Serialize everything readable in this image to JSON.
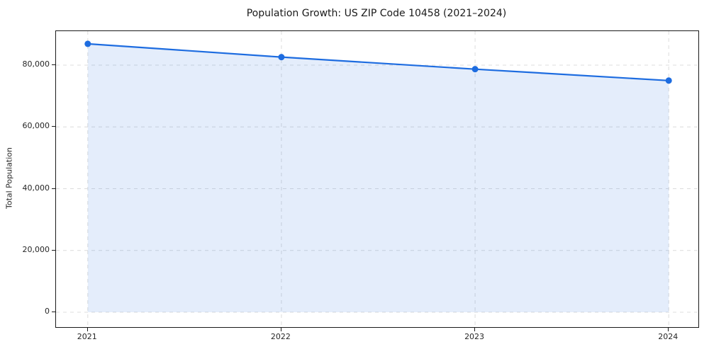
{
  "chart_data": {
    "type": "line",
    "title": "Population Growth: US ZIP Code 10458 (2021–2024)",
    "xlabel": "",
    "ylabel": "Total Population",
    "x": [
      2021,
      2022,
      2023,
      2024
    ],
    "series": [
      {
        "name": "Total Population",
        "values": [
          86900,
          82600,
          78700,
          75000
        ]
      }
    ],
    "xticks": [
      2021,
      2022,
      2023,
      2024
    ],
    "xtick_labels": [
      "2021",
      "2022",
      "2023",
      "2024"
    ],
    "yticks": [
      0,
      20000,
      40000,
      60000,
      80000
    ],
    "ytick_labels": [
      "0",
      "20,000",
      "40,000",
      "60,000",
      "80,000"
    ],
    "xlim": [
      2020.836,
      2024.153
    ],
    "ylim": [
      -4800,
      91000
    ],
    "grid": "on",
    "grid_style": "dashed",
    "legend": "none",
    "area_fill": true,
    "fill_baseline": 0,
    "colors": {
      "line": "#1d6ce0",
      "marker": "#1d6ce0",
      "area_fill": "#1d6ce0",
      "area_fill_opacity": 0.12,
      "grid": "#dcdcdc",
      "spine": "#1a1a1a",
      "text": "#262626",
      "background": "#ffffff"
    }
  }
}
